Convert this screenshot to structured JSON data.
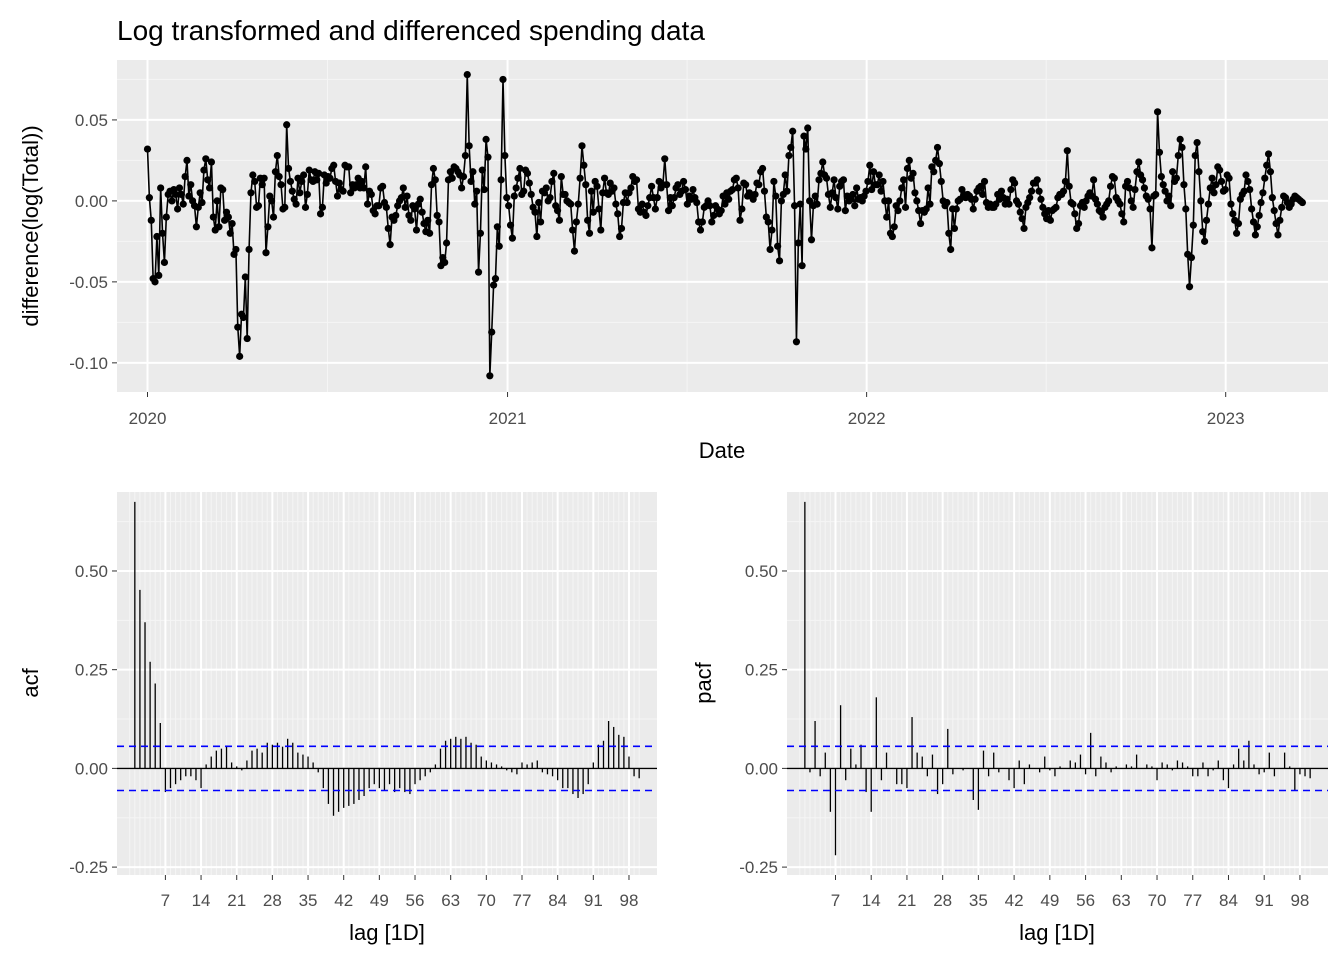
{
  "chart_data": [
    {
      "type": "line",
      "title": "Log transformed and differenced spending data",
      "xlabel": "Date",
      "ylabel": "difference(log(Total))",
      "x_ticks": [
        "2020",
        "2021",
        "2022",
        "2023"
      ],
      "x_range": [
        "2019-12-01",
        "2023-04-15"
      ],
      "y_ticks": [
        "-0.10",
        "-0.05",
        "0.00",
        "0.05"
      ],
      "y_tick_values": [
        -0.1,
        -0.05,
        0.0,
        0.05
      ],
      "ylim": [
        -0.118,
        0.087
      ],
      "x_start": "2020-01-01",
      "x_end": "2023-03-20",
      "grid": true,
      "line_color": "#000000",
      "series": [
        {
          "note_values_daily_from_x_start": "",
          "values": [
            0.032,
            0.002,
            -0.012,
            -0.048,
            -0.05,
            -0.022,
            -0.046,
            0.008,
            -0.02,
            -0.038,
            -0.01,
            0.004,
            0.006,
            0.0,
            0.007,
            0.004,
            -0.005,
            0.008,
            0.004,
            -0.002,
            0.015,
            0.025,
            0.003,
            0.01,
            0.0,
            -0.003,
            -0.016,
            -0.004,
            0.005,
            -0.001,
            0.019,
            0.026,
            0.013,
            0.008,
            0.024,
            -0.01,
            -0.018,
            0.0,
            -0.016,
            0.008,
            0.007,
            -0.012,
            -0.007,
            -0.01,
            -0.02,
            -0.014,
            -0.033,
            -0.03,
            -0.078,
            -0.096,
            -0.07,
            -0.072,
            -0.047,
            -0.085,
            -0.03,
            0.005,
            0.016,
            0.012,
            -0.004,
            -0.003,
            0.014,
            0.01,
            0.014,
            -0.032,
            -0.016,
            0.003,
            0.0,
            -0.01,
            0.018,
            0.028,
            0.015,
            0.01,
            -0.005,
            -0.004,
            0.047,
            0.02,
            0.012,
            0.006,
            0.001,
            -0.002,
            0.014,
            0.005,
            0.012,
            0.016,
            -0.004,
            0.004,
            0.019,
            0.013,
            0.012,
            0.018,
            0.013,
            0.017,
            -0.008,
            -0.004,
            0.016,
            0.011,
            0.015,
            0.014,
            0.02,
            0.022,
            0.012,
            0.003,
            0.011,
            0.007,
            0.006,
            0.022,
            0.021,
            0.021,
            0.005,
            0.01,
            0.008,
            0.01,
            0.014,
            0.008,
            0.012,
            0.008,
            0.021,
            -0.002,
            0.006,
            0.004,
            -0.006,
            -0.008,
            -0.003,
            -0.003,
            0.008,
            0.009,
            -0.001,
            -0.004,
            -0.017,
            -0.027,
            -0.01,
            -0.012,
            -0.009,
            -0.003,
            0.0,
            0.002,
            0.008,
            -0.004,
            0.003,
            -0.009,
            -0.012,
            -0.003,
            -0.005,
            -0.018,
            -0.002,
            0.001,
            -0.007,
            -0.014,
            -0.019,
            -0.012,
            -0.02,
            0.01,
            0.02,
            0.013,
            -0.009,
            -0.013,
            -0.04,
            -0.035,
            -0.038,
            -0.026,
            0.013,
            0.018,
            0.014,
            0.021,
            0.02,
            0.018,
            0.016,
            0.008,
            0.015,
            0.028,
            0.078,
            0.034,
            0.012,
            0.018,
            -0.002,
            0.006,
            -0.044,
            -0.02,
            0.019,
            0.007,
            0.038,
            0.027,
            -0.108,
            -0.081,
            -0.052,
            -0.048,
            -0.016,
            -0.028,
            0.013,
            0.075,
            0.028,
            0.002,
            -0.003,
            -0.015,
            -0.023,
            0.003,
            0.008,
            0.014,
            0.02,
            0.004,
            0.006,
            0.019,
            0.017,
            0.011,
            0.004,
            -0.004,
            -0.007,
            -0.022,
            -0.001,
            -0.013,
            0.006,
            0.005,
            0.008,
            0.0,
            0.002,
            0.012,
            0.017,
            -0.003,
            -0.006,
            -0.012,
            0.015,
            0.004,
            0.004,
            0.0,
            -0.001,
            -0.002,
            -0.018,
            -0.031,
            -0.013,
            -0.002,
            0.014,
            0.034,
            0.022,
            0.01,
            -0.012,
            -0.02,
            0.006,
            -0.007,
            0.012,
            0.009,
            -0.005,
            -0.018,
            0.005,
            0.014,
            0.005,
            0.004,
            0.011,
            0.006,
            0.008,
            -0.002,
            -0.008,
            -0.022,
            -0.017,
            -0.001,
            0.005,
            -0.001,
            0.005,
            0.008,
            0.015,
            0.012,
            0.013,
            -0.005,
            -0.007,
            -0.002,
            -0.007,
            -0.009,
            -0.003,
            0.002,
            0.009,
            0.002,
            -0.005,
            0.002,
            0.012,
            0.008,
            0.01,
            0.026,
            0.01,
            -0.006,
            0.002,
            -0.003,
            0.002,
            0.008,
            0.01,
            0.004,
            0.006,
            0.012,
            0.007,
            -0.002,
            0.003,
            0.001,
            0.007,
            0.002,
            -0.001,
            -0.013,
            -0.018,
            -0.013,
            -0.004,
            -0.003,
            0.0,
            -0.003,
            -0.013,
            -0.009,
            -0.003,
            -0.005,
            -0.008,
            -0.006,
            0.003,
            -0.002,
            0.005,
            0.001,
            0.006,
            0.007,
            0.013,
            0.014,
            0.008,
            -0.012,
            -0.005,
            0.011,
            0.01,
            0.003,
            0.005,
            0.003,
            0.001,
            0.004,
            0.011,
            0.01,
            0.018,
            0.02,
            0.006,
            -0.01,
            -0.013,
            -0.03,
            -0.018,
            0.012,
            0.003,
            -0.028,
            -0.037,
            0.0,
            0.004,
            0.016,
            0.006,
            0.028,
            0.033,
            0.043,
            -0.003,
            -0.087,
            -0.026,
            -0.002,
            -0.04,
            0.04,
            0.032,
            0.045,
            0.0,
            -0.024,
            -0.003,
            0.003,
            -0.002,
            0.013,
            0.017,
            0.024,
            0.016,
            0.014,
            0.004,
            -0.004,
            0.005,
            0.013,
            0.002,
            -0.005,
            0.009,
            0.012,
            0.013,
            -0.006,
            0.003,
            0.0,
            0.001,
            0.004,
            -0.003,
            0.008,
            0.001,
            0.002,
            0.0,
            0.003,
            0.006,
            0.012,
            0.022,
            0.007,
            0.018,
            0.01,
            0.01,
            0.016,
            0.006,
            0.012,
            0.0,
            -0.01,
            0.0,
            -0.02,
            -0.022,
            -0.016,
            -0.003,
            -0.006,
            0.0,
            0.008,
            0.013,
            -0.004,
            0.02,
            0.025,
            0.014,
            0.017,
            0.005,
            0.0,
            -0.006,
            -0.014,
            -0.006,
            -0.007,
            -0.005,
            0.008,
            -0.002,
            0.021,
            0.018,
            0.025,
            0.033,
            0.023,
            0.012,
            0.0,
            -0.003,
            -0.001,
            -0.02,
            -0.03,
            -0.005,
            -0.017,
            -0.005,
            0.0,
            0.001,
            0.007,
            0.004,
            0.002,
            0.004,
            0.003,
            0.001,
            -0.005,
            0.001,
            0.006,
            0.008,
            0.009,
            0.004,
            0.012,
            -0.001,
            -0.004,
            -0.002,
            -0.004,
            -0.004,
            -0.002,
            0.004,
            0.001,
            0.006,
            0.002,
            -0.002,
            0.001,
            -0.002,
            0.007,
            0.013,
            0.011,
            0.0,
            -0.002,
            -0.007,
            -0.011,
            -0.017,
            -0.004,
            -0.001,
            0.002,
            0.006,
            0.011,
            0.011,
            0.013,
            0.006,
            0.001,
            -0.004,
            -0.008,
            -0.011,
            -0.006,
            -0.012,
            -0.006,
            -0.005,
            -0.004,
            0.002,
            0.004,
            0.004,
            0.006,
            0.012,
            0.031,
            0.009,
            -0.001,
            -0.002,
            -0.008,
            -0.017,
            -0.014,
            -0.003,
            -0.001,
            -0.004,
            0.0,
            0.003,
            0.005,
            0.003,
            0.013,
            0.001,
            -0.002,
            -0.006,
            -0.007,
            -0.01,
            -0.004,
            -0.002,
            0.0,
            0.009,
            0.015,
            0.014,
            0.002,
            0.0,
            -0.002,
            -0.008,
            -0.013,
            0.009,
            0.012,
            0.008,
            0.0,
            -0.004,
            0.007,
            0.018,
            0.024,
            0.016,
            0.013,
            0.008,
            0.003,
            0.001,
            -0.005,
            -0.029,
            0.003,
            0.004,
            0.055,
            0.03,
            0.015,
            0.01,
            0.006,
            0.0,
            0.003,
            -0.003,
            0.018,
            0.012,
            0.014,
            0.028,
            0.038,
            0.033,
            0.01,
            -0.005,
            -0.033,
            -0.053,
            -0.035,
            -0.015,
            0.028,
            0.036,
            0.018,
            0.0,
            -0.019,
            -0.025,
            -0.012,
            -0.002,
            0.008,
            0.014,
            0.005,
            0.01,
            0.021,
            0.019,
            0.012,
            0.006,
            0.007,
            0.016,
            0.014,
            -0.002,
            -0.008,
            -0.012,
            -0.02,
            -0.014,
            0.001,
            0.004,
            0.006,
            0.016,
            0.012,
            0.007,
            -0.005,
            -0.013,
            -0.021,
            -0.016,
            -0.009,
            -0.001,
            0.005,
            0.014,
            0.022,
            0.029,
            0.018,
            0.002,
            -0.006,
            -0.014,
            -0.021,
            -0.012,
            -0.004,
            0.003,
            0.002,
            -0.001,
            -0.004,
            -0.002,
            0.001,
            0.003,
            0.002,
            0.001,
            0.0,
            -0.001
          ]
        }
      ]
    },
    {
      "type": "bar",
      "xlabel": "lag [1D]",
      "ylabel": "acf",
      "x_ticks": [
        "7",
        "14",
        "21",
        "28",
        "35",
        "42",
        "49",
        "56",
        "63",
        "70",
        "77",
        "84",
        "91",
        "98"
      ],
      "y_ticks": [
        "-0.25",
        "0.00",
        "0.25",
        "0.50"
      ],
      "y_tick_values": [
        -0.25,
        0.0,
        0.25,
        0.5
      ],
      "ylim": [
        -0.27,
        0.7
      ],
      "xlim": [
        -2.5,
        103.5
      ],
      "grid": true,
      "confidence_bound": 0.056,
      "confidence_line_color": "#0000ff",
      "lags": [
        1,
        2,
        3,
        4,
        5,
        6,
        7,
        8,
        9,
        10,
        11,
        12,
        13,
        14,
        15,
        16,
        17,
        18,
        19,
        20,
        21,
        22,
        23,
        24,
        25,
        26,
        27,
        28,
        29,
        30,
        31,
        32,
        33,
        34,
        35,
        36,
        37,
        38,
        39,
        40,
        41,
        42,
        43,
        44,
        45,
        46,
        47,
        48,
        49,
        50,
        51,
        52,
        53,
        54,
        55,
        56,
        57,
        58,
        59,
        60,
        61,
        62,
        63,
        64,
        65,
        66,
        67,
        68,
        69,
        70,
        71,
        72,
        73,
        74,
        75,
        76,
        77,
        78,
        79,
        80,
        81,
        82,
        83,
        84,
        85,
        86,
        87,
        88,
        89,
        90,
        91,
        92,
        93,
        94,
        95,
        96,
        97,
        98,
        99,
        100
      ],
      "values": [
        0.675,
        0.452,
        0.37,
        0.27,
        0.215,
        0.115,
        -0.06,
        -0.05,
        -0.04,
        -0.03,
        -0.02,
        -0.02,
        -0.03,
        -0.05,
        0.01,
        0.03,
        0.045,
        0.05,
        0.055,
        0.015,
        0.005,
        -0.005,
        0.02,
        0.045,
        0.05,
        0.04,
        0.065,
        0.06,
        0.065,
        0.055,
        0.075,
        0.065,
        0.04,
        0.035,
        0.03,
        0.015,
        -0.01,
        -0.05,
        -0.09,
        -0.12,
        -0.11,
        -0.1,
        -0.095,
        -0.09,
        -0.08,
        -0.07,
        -0.05,
        -0.04,
        -0.05,
        -0.055,
        -0.04,
        -0.06,
        -0.05,
        -0.06,
        -0.065,
        -0.04,
        -0.03,
        -0.02,
        -0.01,
        0.01,
        0.05,
        0.07,
        0.075,
        0.08,
        0.075,
        0.08,
        0.065,
        0.06,
        0.03,
        0.02,
        0.015,
        0.01,
        0.005,
        -0.005,
        -0.01,
        -0.015,
        0.015,
        0.01,
        0.015,
        0.02,
        -0.01,
        -0.015,
        -0.02,
        -0.03,
        -0.05,
        -0.05,
        -0.065,
        -0.075,
        -0.065,
        -0.04,
        0.015,
        0.06,
        0.07,
        0.12,
        0.105,
        0.085,
        0.08,
        0.03,
        -0.02,
        -0.025
      ]
    },
    {
      "type": "bar",
      "xlabel": "lag [1D]",
      "ylabel": "pacf",
      "x_ticks": [
        "7",
        "14",
        "21",
        "28",
        "35",
        "42",
        "49",
        "56",
        "63",
        "70",
        "77",
        "84",
        "91",
        "98"
      ],
      "y_ticks": [
        "-0.25",
        "0.00",
        "0.25",
        "0.50"
      ],
      "y_tick_values": [
        -0.25,
        0.0,
        0.25,
        0.5
      ],
      "ylim": [
        -0.27,
        0.7
      ],
      "xlim": [
        -2.5,
        103.5
      ],
      "grid": true,
      "confidence_bound": 0.056,
      "confidence_line_color": "#0000ff",
      "lags": [
        1,
        2,
        3,
        4,
        5,
        6,
        7,
        8,
        9,
        10,
        11,
        12,
        13,
        14,
        15,
        16,
        17,
        18,
        19,
        20,
        21,
        22,
        23,
        24,
        25,
        26,
        27,
        28,
        29,
        30,
        31,
        32,
        33,
        34,
        35,
        36,
        37,
        38,
        39,
        40,
        41,
        42,
        43,
        44,
        45,
        46,
        47,
        48,
        49,
        50,
        51,
        52,
        53,
        54,
        55,
        56,
        57,
        58,
        59,
        60,
        61,
        62,
        63,
        64,
        65,
        66,
        67,
        68,
        69,
        70,
        71,
        72,
        73,
        74,
        75,
        76,
        77,
        78,
        79,
        80,
        81,
        82,
        83,
        84,
        85,
        86,
        87,
        88,
        89,
        90,
        91,
        92,
        93,
        94,
        95,
        96,
        97,
        98,
        99,
        100
      ],
      "values": [
        0.675,
        -0.01,
        0.12,
        -0.02,
        0.04,
        -0.11,
        -0.22,
        0.16,
        -0.03,
        0.05,
        0.01,
        0.06,
        -0.06,
        -0.11,
        0.18,
        -0.03,
        0.04,
        0.0,
        -0.04,
        -0.04,
        -0.05,
        0.13,
        0.04,
        0.03,
        -0.02,
        0.035,
        -0.065,
        -0.04,
        0.1,
        -0.015,
        0.0,
        -0.005,
        0.0,
        -0.08,
        -0.105,
        0.045,
        -0.02,
        0.04,
        -0.01,
        0.0,
        -0.03,
        -0.05,
        0.02,
        -0.04,
        0.01,
        0.0,
        -0.01,
        0.03,
        -0.005,
        -0.02,
        0.005,
        0.0,
        0.02,
        0.015,
        0.035,
        -0.015,
        0.09,
        -0.02,
        0.03,
        0.015,
        -0.01,
        0.005,
        0.0,
        0.01,
        0.005,
        0.035,
        0.0,
        0.01,
        0.005,
        -0.03,
        0.015,
        0.01,
        -0.005,
        0.02,
        0.015,
        0.005,
        -0.02,
        -0.02,
        0.015,
        -0.02,
        -0.005,
        0.02,
        -0.03,
        -0.05,
        0.01,
        0.05,
        0.02,
        0.07,
        0.01,
        -0.015,
        -0.01,
        0.04,
        -0.02,
        0.0,
        0.04,
        0.005,
        -0.055,
        -0.015,
        -0.02,
        -0.025
      ]
    }
  ]
}
